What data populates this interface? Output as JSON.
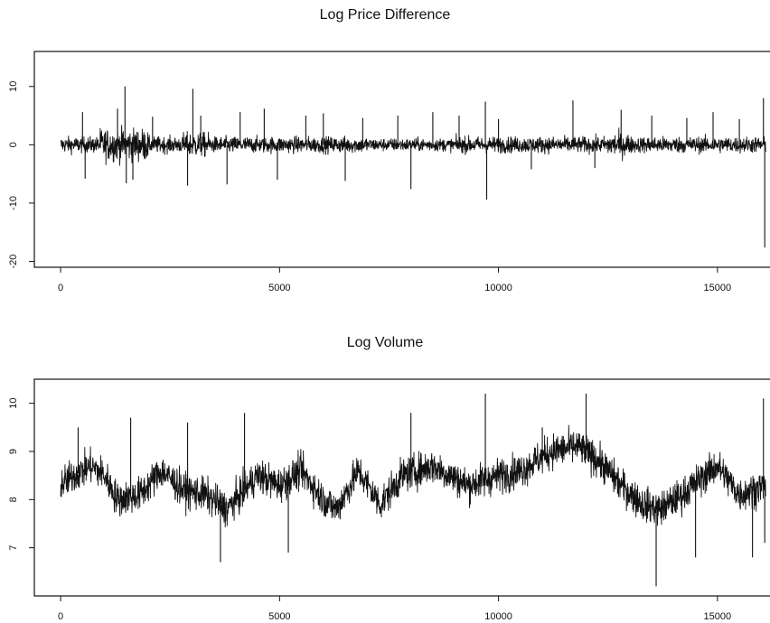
{
  "chart_data": [
    {
      "type": "line",
      "title": "Log Price Difference",
      "xlabel": "",
      "ylabel": "",
      "xlim": [
        -600,
        16200
      ],
      "ylim": [
        -21,
        16
      ],
      "x_ticks": [
        0,
        5000,
        10000,
        15000
      ],
      "x_tick_labels": [
        "0",
        "5000",
        "10000",
        "15000"
      ],
      "y_ticks": [
        -20,
        -10,
        0,
        10
      ],
      "y_tick_labels": [
        "-20",
        "-10",
        "0",
        "10"
      ],
      "grid": false,
      "n_points": 16100,
      "baseline": 0,
      "spikes": [
        {
          "x": 500,
          "y": 5.6
        },
        {
          "x": 560,
          "y": -5.8
        },
        {
          "x": 1300,
          "y": 6.2
        },
        {
          "x": 1470,
          "y": 10.0
        },
        {
          "x": 1500,
          "y": -6.6
        },
        {
          "x": 1650,
          "y": -6.0
        },
        {
          "x": 2100,
          "y": 4.8
        },
        {
          "x": 2900,
          "y": -7.0
        },
        {
          "x": 3020,
          "y": 9.6
        },
        {
          "x": 3200,
          "y": 5.0
        },
        {
          "x": 3800,
          "y": -6.8
        },
        {
          "x": 4100,
          "y": 5.6
        },
        {
          "x": 4650,
          "y": 6.2
        },
        {
          "x": 4950,
          "y": -6.0
        },
        {
          "x": 5600,
          "y": 5.0
        },
        {
          "x": 6000,
          "y": 5.4
        },
        {
          "x": 6500,
          "y": -6.2
        },
        {
          "x": 6900,
          "y": 4.6
        },
        {
          "x": 7700,
          "y": 5.0
        },
        {
          "x": 8000,
          "y": -7.6
        },
        {
          "x": 8500,
          "y": 5.6
        },
        {
          "x": 9100,
          "y": 5.0
        },
        {
          "x": 9700,
          "y": 7.4
        },
        {
          "x": 9730,
          "y": -9.4
        },
        {
          "x": 10000,
          "y": 4.4
        },
        {
          "x": 10750,
          "y": -4.2
        },
        {
          "x": 11700,
          "y": 7.6
        },
        {
          "x": 12200,
          "y": -4.0
        },
        {
          "x": 12800,
          "y": 6.0
        },
        {
          "x": 13500,
          "y": 5.0
        },
        {
          "x": 14300,
          "y": 4.6
        },
        {
          "x": 14900,
          "y": 5.6
        },
        {
          "x": 15500,
          "y": 4.4
        },
        {
          "x": 16050,
          "y": 8.0
        },
        {
          "x": 16080,
          "y": -17.6
        }
      ]
    },
    {
      "type": "line",
      "title": "Log Volume",
      "xlabel": "",
      "ylabel": "",
      "xlim": [
        -600,
        16200
      ],
      "ylim": [
        6.0,
        10.5
      ],
      "x_ticks": [
        0,
        5000,
        10000,
        15000
      ],
      "x_tick_labels": [
        "0",
        "5000",
        "10000",
        "15000"
      ],
      "y_ticks": [
        7,
        8,
        9,
        10
      ],
      "y_tick_labels": [
        "7",
        "8",
        "9",
        "10"
      ],
      "grid": false,
      "n_points": 16100,
      "trend": [
        {
          "x": 0,
          "y": 8.3
        },
        {
          "x": 300,
          "y": 8.5
        },
        {
          "x": 700,
          "y": 8.7
        },
        {
          "x": 1000,
          "y": 8.5
        },
        {
          "x": 1300,
          "y": 8.0
        },
        {
          "x": 1800,
          "y": 8.1
        },
        {
          "x": 2300,
          "y": 8.6
        },
        {
          "x": 2800,
          "y": 8.2
        },
        {
          "x": 3300,
          "y": 8.1
        },
        {
          "x": 3800,
          "y": 7.8
        },
        {
          "x": 4500,
          "y": 8.5
        },
        {
          "x": 5000,
          "y": 8.3
        },
        {
          "x": 5500,
          "y": 8.6
        },
        {
          "x": 6000,
          "y": 8.0
        },
        {
          "x": 6300,
          "y": 7.8
        },
        {
          "x": 6800,
          "y": 8.6
        },
        {
          "x": 7300,
          "y": 7.9
        },
        {
          "x": 7800,
          "y": 8.5
        },
        {
          "x": 8500,
          "y": 8.7
        },
        {
          "x": 9300,
          "y": 8.3
        },
        {
          "x": 10000,
          "y": 8.5
        },
        {
          "x": 10500,
          "y": 8.6
        },
        {
          "x": 11200,
          "y": 9.0
        },
        {
          "x": 11800,
          "y": 9.1
        },
        {
          "x": 12300,
          "y": 8.8
        },
        {
          "x": 12800,
          "y": 8.3
        },
        {
          "x": 13300,
          "y": 7.9
        },
        {
          "x": 13700,
          "y": 7.8
        },
        {
          "x": 14200,
          "y": 8.1
        },
        {
          "x": 14700,
          "y": 8.5
        },
        {
          "x": 15000,
          "y": 8.7
        },
        {
          "x": 15500,
          "y": 8.1
        },
        {
          "x": 16100,
          "y": 8.3
        }
      ],
      "spikes": [
        {
          "x": 400,
          "y": 9.5
        },
        {
          "x": 1600,
          "y": 9.7
        },
        {
          "x": 2900,
          "y": 9.6
        },
        {
          "x": 3650,
          "y": 6.7
        },
        {
          "x": 4200,
          "y": 9.8
        },
        {
          "x": 5200,
          "y": 6.9
        },
        {
          "x": 8000,
          "y": 9.8
        },
        {
          "x": 9700,
          "y": 10.2
        },
        {
          "x": 11000,
          "y": 9.5
        },
        {
          "x": 12000,
          "y": 10.2
        },
        {
          "x": 13600,
          "y": 6.2
        },
        {
          "x": 14500,
          "y": 6.8
        },
        {
          "x": 15800,
          "y": 6.8
        },
        {
          "x": 16050,
          "y": 10.1
        },
        {
          "x": 16080,
          "y": 7.1
        }
      ]
    }
  ]
}
